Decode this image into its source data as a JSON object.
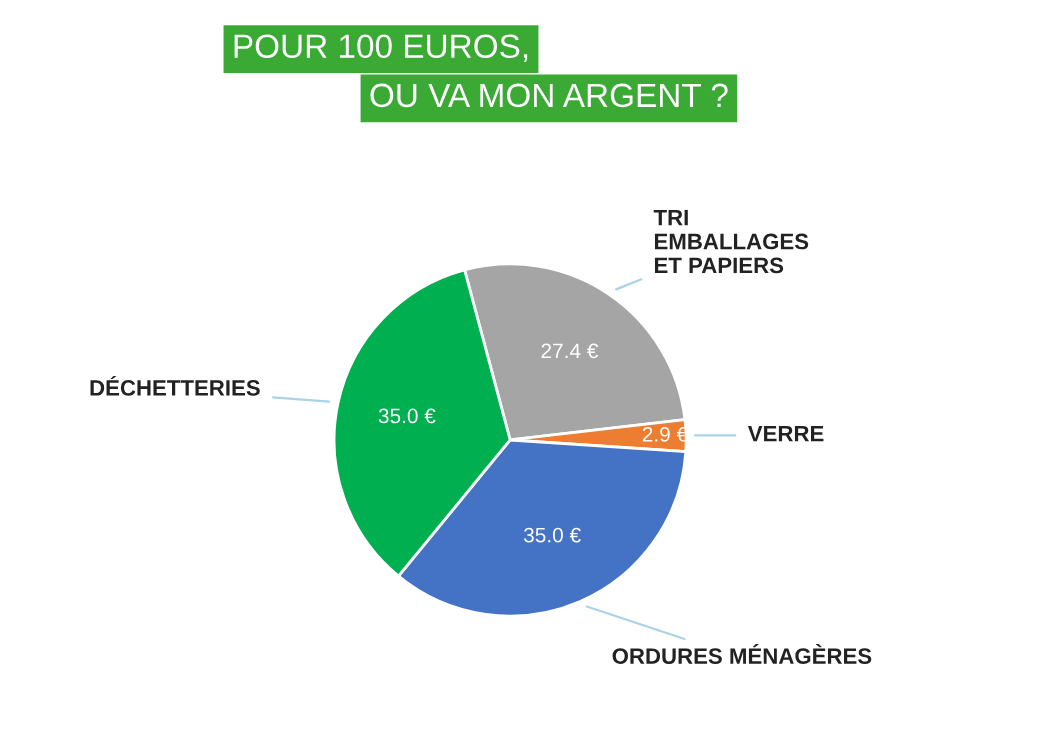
{
  "chart_data": {
    "type": "pie",
    "title": "POUR 100 EUROS,\nOU VA MON ARGENT ?",
    "categories": [
      "TRI\nEMBALLAGES\nET PAPIERS",
      "VERRE",
      "ORDURES MÉNAGÈRES",
      "DÉCHETTERIES"
    ],
    "values": [
      27.4,
      2.9,
      35.0,
      35.0
    ],
    "colors": [
      "#a5a5a5",
      "#ed7d31",
      "#4472c4",
      "#00b050"
    ],
    "value_labels": [
      "27.4 €",
      "2.9 €",
      "35.0 €",
      "35.0 €"
    ],
    "legend": false
  }
}
